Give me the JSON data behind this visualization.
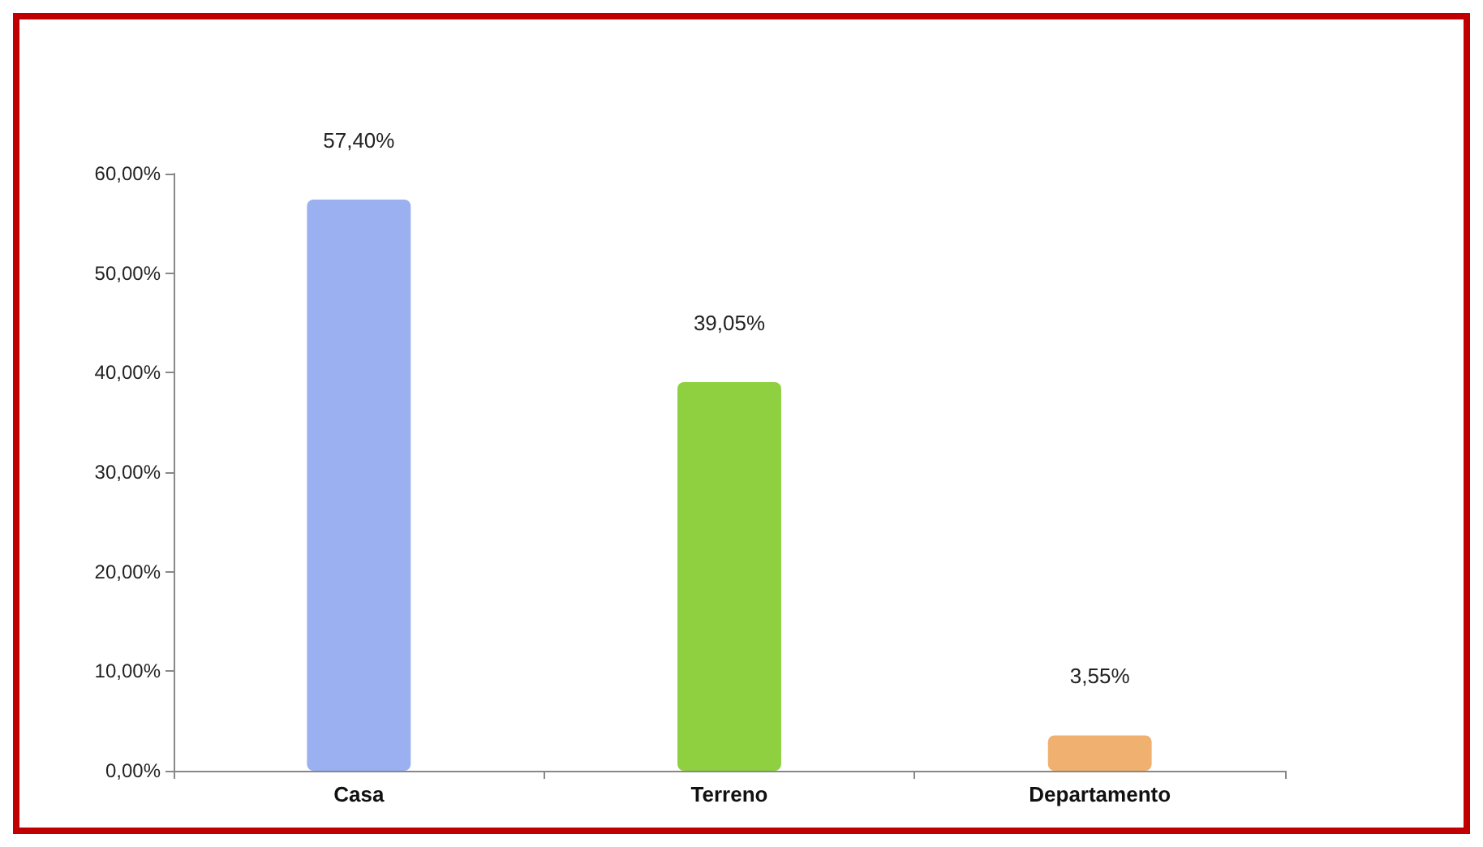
{
  "chart_data": {
    "type": "bar",
    "categories": [
      "Casa",
      "Terreno",
      "Departamento"
    ],
    "values": [
      57.4,
      39.05,
      3.55
    ],
    "colors": [
      "#9ab0f0",
      "#8ed040",
      "#f0b070"
    ],
    "value_labels": [
      "57,40%",
      "39,05%",
      "3,55%"
    ],
    "ylim": [
      0,
      60
    ],
    "yticks": [
      {
        "value": 0,
        "label": "0,00%"
      },
      {
        "value": 10,
        "label": "10,00%"
      },
      {
        "value": 20,
        "label": "20,00%"
      },
      {
        "value": 30,
        "label": "30,00%"
      },
      {
        "value": 40,
        "label": "40,00%"
      },
      {
        "value": 50,
        "label": "50,00%"
      },
      {
        "value": 60,
        "label": "60,00%"
      }
    ],
    "grid": false
  }
}
